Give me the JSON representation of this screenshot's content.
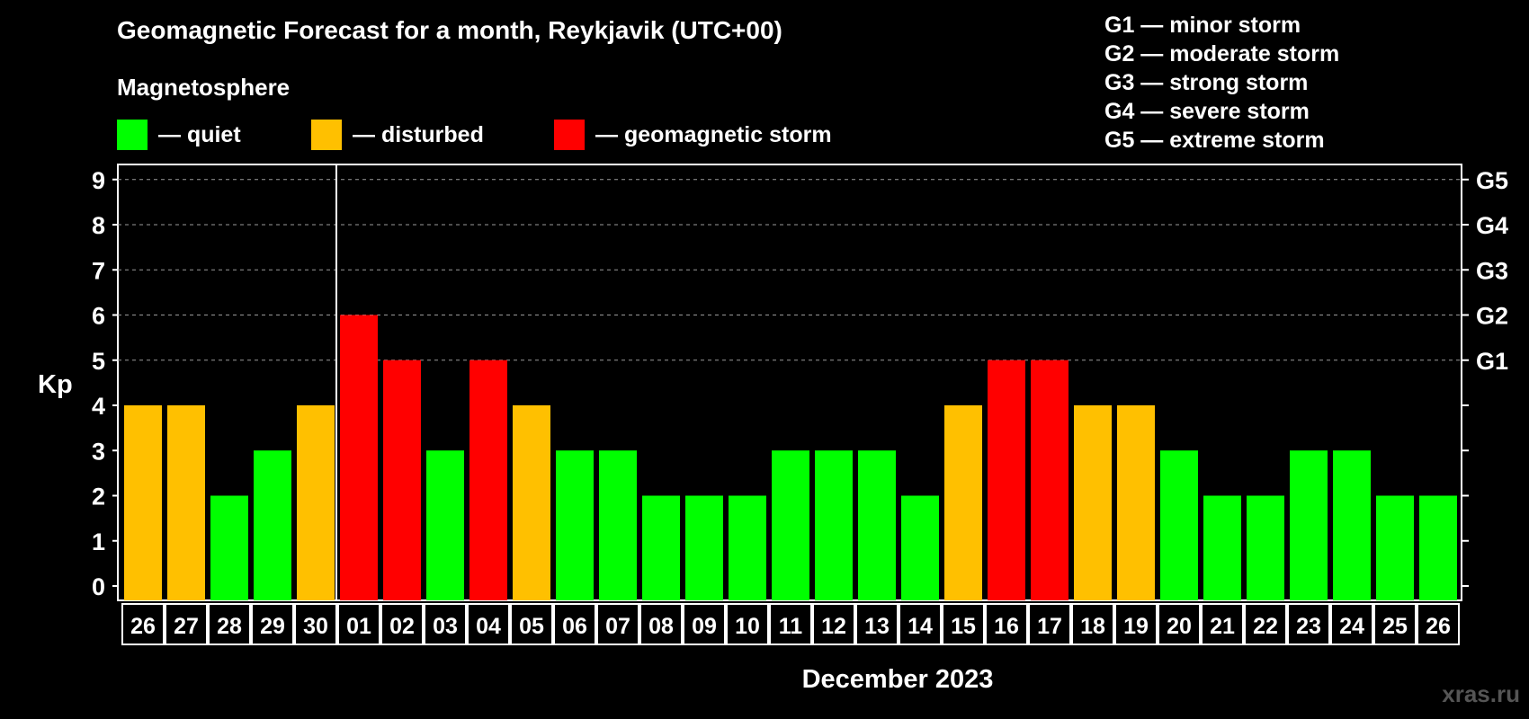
{
  "title": "Geomagnetic Forecast for a month, Reykjavik (UTC+00)",
  "subtitle": "Magnetosphere",
  "legend": [
    {
      "label": "— quiet",
      "color": "#00ff00"
    },
    {
      "label": "— disturbed",
      "color": "#ffc000"
    },
    {
      "label": "— geomagnetic storm",
      "color": "#ff0000"
    }
  ],
  "storm_levels": [
    "G1 — minor storm",
    "G2 — moderate storm",
    "G3 — strong storm",
    "G4 — severe storm",
    "G5 — extreme storm"
  ],
  "watermark": "xras.ru",
  "colors": {
    "quiet": "#00ff00",
    "disturbed": "#ffc000",
    "storm": "#ff0000",
    "background": "#000000",
    "foreground": "#ffffff"
  },
  "chart_data": {
    "type": "bar",
    "ylabel": "Kp",
    "xlabel": "December 2023",
    "ylim": [
      0,
      9
    ],
    "yticks": [
      "0",
      "1",
      "2",
      "3",
      "4",
      "5",
      "6",
      "7",
      "8",
      "9"
    ],
    "right_axis_labels": [
      {
        "value": 5,
        "label": "G1"
      },
      {
        "value": 6,
        "label": "G2"
      },
      {
        "value": 7,
        "label": "G3"
      },
      {
        "value": 8,
        "label": "G4"
      },
      {
        "value": 9,
        "label": "G5"
      }
    ],
    "grid": "dashed horizontal at Kp 5–9",
    "month_divider_after_index": 4,
    "categories": [
      "26",
      "27",
      "28",
      "29",
      "30",
      "01",
      "02",
      "03",
      "04",
      "05",
      "06",
      "07",
      "08",
      "09",
      "10",
      "11",
      "12",
      "13",
      "14",
      "15",
      "16",
      "17",
      "18",
      "19",
      "20",
      "21",
      "22",
      "23",
      "24",
      "25",
      "26"
    ],
    "values": [
      4,
      4,
      2,
      3,
      4,
      6,
      5,
      3,
      5,
      4,
      3,
      3,
      2,
      2,
      2,
      3,
      3,
      3,
      2,
      4,
      5,
      5,
      4,
      4,
      3,
      2,
      2,
      3,
      3,
      2,
      2
    ],
    "status": [
      "disturbed",
      "disturbed",
      "quiet",
      "quiet",
      "disturbed",
      "storm",
      "storm",
      "quiet",
      "storm",
      "disturbed",
      "quiet",
      "quiet",
      "quiet",
      "quiet",
      "quiet",
      "quiet",
      "quiet",
      "quiet",
      "quiet",
      "disturbed",
      "storm",
      "storm",
      "disturbed",
      "disturbed",
      "quiet",
      "quiet",
      "quiet",
      "quiet",
      "quiet",
      "quiet",
      "quiet"
    ]
  }
}
